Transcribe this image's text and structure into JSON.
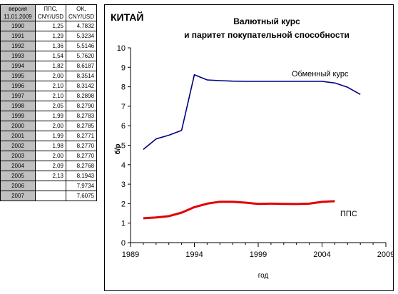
{
  "table": {
    "headers": [
      [
        "версия",
        "11.01.2009"
      ],
      [
        "ППС,",
        "CNY/USD"
      ],
      [
        "OK,",
        "CNY/USD"
      ]
    ],
    "rows": [
      [
        "1990",
        "1,25",
        "4,7832"
      ],
      [
        "1991",
        "1,29",
        "5,3234"
      ],
      [
        "1992",
        "1,36",
        "5,5146"
      ],
      [
        "1993",
        "1,54",
        "5,7620"
      ],
      [
        "1994",
        "1,82",
        "8,6187"
      ],
      [
        "1995",
        "2,00",
        "8,3514"
      ],
      [
        "1996",
        "2,10",
        "8,3142"
      ],
      [
        "1997",
        "2,10",
        "8,2898"
      ],
      [
        "1998",
        "2,05",
        "8,2790"
      ],
      [
        "1999",
        "1,99",
        "8,2783"
      ],
      [
        "2000",
        "2,00",
        "8,2785"
      ],
      [
        "2001",
        "1,99",
        "8,2771"
      ],
      [
        "2002",
        "1,98",
        "8,2770"
      ],
      [
        "2003",
        "2,00",
        "8,2770"
      ],
      [
        "2004",
        "2,09",
        "8,2768"
      ],
      [
        "2005",
        "2,13",
        "8,1943"
      ],
      [
        "2006",
        "",
        "7,9734"
      ],
      [
        "2007",
        "",
        "7,6075"
      ]
    ]
  },
  "chart_data": {
    "type": "line",
    "country_label": "КИТАЙ",
    "title": [
      "Валютный курс",
      "и паритет покупательной способности"
    ],
    "xlabel": "год",
    "ylabel": "б/р",
    "xlim": [
      1989,
      2009
    ],
    "ylim": [
      0,
      10
    ],
    "x_ticks": [
      1989,
      1994,
      1999,
      2004,
      2009
    ],
    "y_ticks": [
      0,
      1,
      2,
      3,
      4,
      5,
      6,
      7,
      8,
      9,
      10
    ],
    "grid": false,
    "series": [
      {
        "name": "Обменный курс",
        "color": "#000080",
        "x": [
          1990,
          1991,
          1992,
          1993,
          1994,
          1995,
          1996,
          1997,
          1998,
          1999,
          2000,
          2001,
          2002,
          2003,
          2004,
          2005,
          2006,
          2007
        ],
        "values": [
          4.7832,
          5.3234,
          5.5146,
          5.762,
          8.6187,
          8.3514,
          8.3142,
          8.2898,
          8.279,
          8.2783,
          8.2785,
          8.2771,
          8.277,
          8.277,
          8.2768,
          8.1943,
          7.9734,
          7.6075
        ]
      },
      {
        "name": "ППС",
        "color": "#e00000",
        "x": [
          1990,
          1991,
          1992,
          1993,
          1994,
          1995,
          1996,
          1997,
          1998,
          1999,
          2000,
          2001,
          2002,
          2003,
          2004,
          2005
        ],
        "values": [
          1.25,
          1.29,
          1.36,
          1.54,
          1.82,
          2.0,
          2.1,
          2.1,
          2.05,
          1.99,
          2.0,
          1.99,
          1.98,
          2.0,
          2.09,
          2.13
        ]
      }
    ]
  }
}
